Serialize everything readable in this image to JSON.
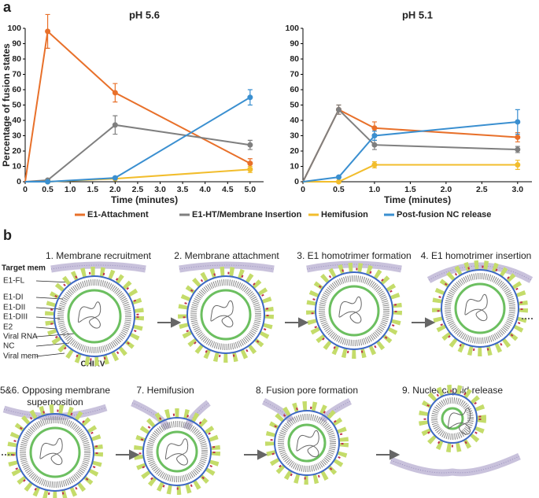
{
  "panel_labels": [
    "a",
    "b"
  ],
  "chart_data": [
    {
      "type": "line",
      "title": "pH 5.6",
      "y_label": "Percentage of fusion states",
      "x_label": "Time (minutes)",
      "x": [
        0,
        0.5,
        2,
        5
      ],
      "xlim": [
        0,
        5.3
      ],
      "xticks": [
        0,
        0.5,
        {
          "value": 1,
          "label": "1.0"
        },
        1.5,
        {
          "value": 2,
          "label": "2.0"
        },
        2.5,
        {
          "value": 3,
          "label": "3.0"
        },
        3.5,
        {
          "value": 4,
          "label": "4.0"
        },
        4.5,
        {
          "value": 5,
          "label": "5.0"
        }
      ],
      "ylim": [
        0,
        110
      ],
      "yticks": [
        0,
        10,
        20,
        30,
        40,
        50,
        60,
        70,
        80,
        90,
        100
      ],
      "series": [
        {
          "name": "E1-Attachment",
          "color": "#e8702a",
          "values": [
            0,
            98,
            58,
            12
          ],
          "errors": [
            null,
            11,
            6,
            3
          ]
        },
        {
          "name": "E1-HT/Membrane Insertion",
          "color": "#7f7f7f",
          "values": [
            0,
            1,
            37,
            24
          ],
          "errors": [
            null,
            null,
            6,
            3
          ]
        },
        {
          "name": "Hemifusion",
          "color": "#f2bd2c",
          "values": [
            0,
            0,
            2,
            8
          ],
          "errors": [
            null,
            null,
            null,
            2
          ]
        },
        {
          "name": "Post-fusion NC release",
          "color": "#3a8fd0",
          "values": [
            0,
            0,
            2.5,
            55
          ],
          "errors": [
            null,
            null,
            null,
            5
          ]
        }
      ]
    },
    {
      "type": "line",
      "title": "pH 5.1",
      "x_label": "Time (minutes)",
      "x": [
        0,
        0.5,
        1,
        3
      ],
      "xlim": [
        0,
        3.2
      ],
      "xticks": [
        0,
        0.5,
        {
          "value": 1,
          "label": "1.0"
        },
        1.5,
        {
          "value": 2,
          "label": "2.0"
        },
        2.5,
        {
          "value": 3,
          "label": "3.0"
        }
      ],
      "ylim": [
        0,
        110
      ],
      "yticks": [
        0,
        10,
        20,
        30,
        40,
        50,
        60,
        70,
        80,
        90,
        100
      ],
      "series": [
        {
          "color": "#e8702a",
          "values": [
            0,
            47,
            35,
            29
          ],
          "errors": [
            null,
            3,
            4,
            3
          ]
        },
        {
          "color": "#7f7f7f",
          "values": [
            0,
            47,
            24,
            21
          ],
          "errors": [
            null,
            3,
            3,
            2
          ]
        },
        {
          "color": "#f2bd2c",
          "values": [
            0,
            0,
            11,
            11
          ],
          "errors": [
            null,
            null,
            2,
            3
          ]
        },
        {
          "color": "#3a8fd0",
          "values": [
            0,
            3,
            30,
            39
          ],
          "errors": [
            null,
            null,
            3,
            8
          ]
        }
      ]
    }
  ],
  "diagram": {
    "steps": [
      "1. Membrane recruitment",
      "2. Membrane attachment",
      "3. E1 homotrimer formation",
      "4. E1 homotrimer insertion",
      [
        "5&6. Opposing membrane",
        "superposition"
      ],
      "7. Hemifusion",
      "8. Fusion pore formation",
      "9. Nucleocapsid release"
    ],
    "labels": [
      "Target mem",
      "E1-FL",
      "E1-DI",
      "E1-DII",
      "E1-DIII",
      "E2",
      "Viral RNA",
      "NC",
      "Viral mem"
    ],
    "virus": "CHIKV"
  }
}
